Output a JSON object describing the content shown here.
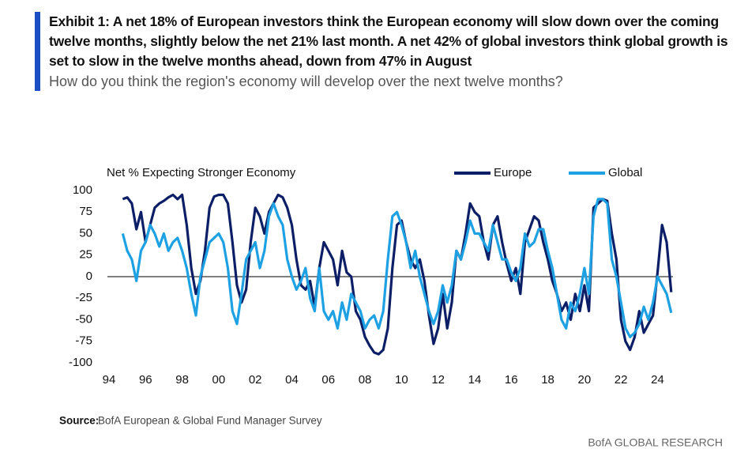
{
  "chart_data": {
    "type": "line",
    "title": "Exhibit 1: A net 18% of European investors think the European economy will slow down over the coming twelve months, slightly below the net 21% last month. A net 42% of global investors think global growth is set to slow in the twelve months ahead, down from 47% in August",
    "subtitle": "How do you think the region's economy will develop over the next twelve months?",
    "ylabel": "Net % Expecting Stronger Economy",
    "source_label": "Source:",
    "source": "BofA European & Global Fund Manager Survey",
    "footer": "BofA GLOBAL RESEARCH",
    "xlim": [
      1994,
      2025
    ],
    "xticks": [
      {
        "value": 1994,
        "label": "94"
      },
      {
        "value": 1996,
        "label": "96"
      },
      {
        "value": 1998,
        "label": "98"
      },
      {
        "value": 2000,
        "label": "00"
      },
      {
        "value": 2002,
        "label": "02"
      },
      {
        "value": 2004,
        "label": "04"
      },
      {
        "value": 2006,
        "label": "06"
      },
      {
        "value": 2008,
        "label": "08"
      },
      {
        "value": 2010,
        "label": "10"
      },
      {
        "value": 2012,
        "label": "12"
      },
      {
        "value": 2014,
        "label": "14"
      },
      {
        "value": 2016,
        "label": "16"
      },
      {
        "value": 2018,
        "label": "18"
      },
      {
        "value": 2020,
        "label": "20"
      },
      {
        "value": 2022,
        "label": "22"
      },
      {
        "value": 2024,
        "label": "24"
      }
    ],
    "ylim": [
      -100,
      100
    ],
    "yticks": [
      100,
      75,
      50,
      25,
      0,
      -25,
      -50,
      -75,
      -100
    ],
    "zero_line": true,
    "legend": "top-right",
    "x": [
      1994.75,
      1995,
      1995.25,
      1995.5,
      1995.75,
      1996,
      1996.25,
      1996.5,
      1996.75,
      1997,
      1997.25,
      1997.5,
      1997.75,
      1998,
      1998.25,
      1998.5,
      1998.75,
      1999,
      1999.25,
      1999.5,
      1999.75,
      2000,
      2000.25,
      2000.5,
      2000.75,
      2001,
      2001.25,
      2001.5,
      2001.75,
      2002,
      2002.25,
      2002.5,
      2002.75,
      2003,
      2003.25,
      2003.5,
      2003.75,
      2004,
      2004.25,
      2004.5,
      2004.75,
      2005,
      2005.25,
      2005.5,
      2005.75,
      2006,
      2006.25,
      2006.5,
      2006.75,
      2007,
      2007.25,
      2007.5,
      2007.75,
      2008,
      2008.25,
      2008.5,
      2008.75,
      2009,
      2009.25,
      2009.5,
      2009.75,
      2010,
      2010.25,
      2010.5,
      2010.75,
      2011,
      2011.25,
      2011.5,
      2011.75,
      2012,
      2012.25,
      2012.5,
      2012.75,
      2013,
      2013.25,
      2013.5,
      2013.75,
      2014,
      2014.25,
      2014.5,
      2014.75,
      2015,
      2015.25,
      2015.5,
      2015.75,
      2016,
      2016.25,
      2016.5,
      2016.75,
      2017,
      2017.25,
      2017.5,
      2017.75,
      2018,
      2018.25,
      2018.5,
      2018.75,
      2019,
      2019.25,
      2019.5,
      2019.75,
      2020,
      2020.25,
      2020.5,
      2020.75,
      2021,
      2021.25,
      2021.5,
      2021.75,
      2022,
      2022.25,
      2022.5,
      2022.75,
      2023,
      2023.25,
      2023.5,
      2023.75,
      2024,
      2024.25,
      2024.5,
      2024.75
    ],
    "series": [
      {
        "name": "Europe",
        "color": "#0c1f66",
        "values": [
          90,
          92,
          85,
          55,
          75,
          40,
          60,
          80,
          85,
          88,
          92,
          95,
          90,
          95,
          60,
          10,
          -20,
          -5,
          30,
          80,
          93,
          95,
          95,
          85,
          40,
          -10,
          -30,
          -15,
          40,
          80,
          70,
          50,
          75,
          85,
          95,
          92,
          80,
          60,
          20,
          -10,
          -15,
          -5,
          -35,
          10,
          40,
          30,
          20,
          -10,
          30,
          5,
          0,
          -40,
          -50,
          -70,
          -80,
          -88,
          -90,
          -85,
          -60,
          10,
          60,
          65,
          40,
          20,
          10,
          20,
          -5,
          -45,
          -78,
          -60,
          -20,
          -60,
          -30,
          30,
          20,
          50,
          85,
          75,
          70,
          40,
          20,
          60,
          70,
          40,
          15,
          -5,
          10,
          -20,
          40,
          55,
          70,
          65,
          40,
          20,
          -5,
          -20,
          -40,
          -30,
          -50,
          -20,
          -40,
          -10,
          -40,
          80,
          85,
          90,
          88,
          50,
          20,
          -50,
          -75,
          -85,
          -70,
          -40,
          -65,
          -55,
          -45,
          5,
          60,
          40,
          -18
        ]
      },
      {
        "name": "Global",
        "color": "#1ea1e3",
        "values": [
          50,
          30,
          20,
          -5,
          30,
          40,
          60,
          50,
          35,
          50,
          30,
          40,
          45,
          30,
          10,
          -20,
          -45,
          0,
          20,
          40,
          45,
          50,
          40,
          10,
          -40,
          -55,
          -20,
          20,
          30,
          40,
          10,
          30,
          70,
          85,
          70,
          60,
          20,
          0,
          -15,
          -5,
          10,
          -25,
          -40,
          10,
          -40,
          -50,
          -40,
          -60,
          -30,
          -50,
          -20,
          -30,
          -40,
          -60,
          -50,
          -45,
          -60,
          -40,
          20,
          70,
          75,
          60,
          40,
          10,
          30,
          0,
          -20,
          -40,
          -55,
          -40,
          -10,
          -30,
          -10,
          30,
          20,
          40,
          65,
          50,
          50,
          40,
          30,
          60,
          40,
          20,
          20,
          5,
          -5,
          10,
          50,
          35,
          40,
          55,
          55,
          30,
          10,
          -20,
          -50,
          -60,
          -30,
          -40,
          -20,
          10,
          -20,
          70,
          90,
          90,
          85,
          20,
          0,
          -30,
          -60,
          -70,
          -65,
          -55,
          -35,
          -50,
          -30,
          0,
          -10,
          -20,
          -42
        ]
      }
    ]
  }
}
